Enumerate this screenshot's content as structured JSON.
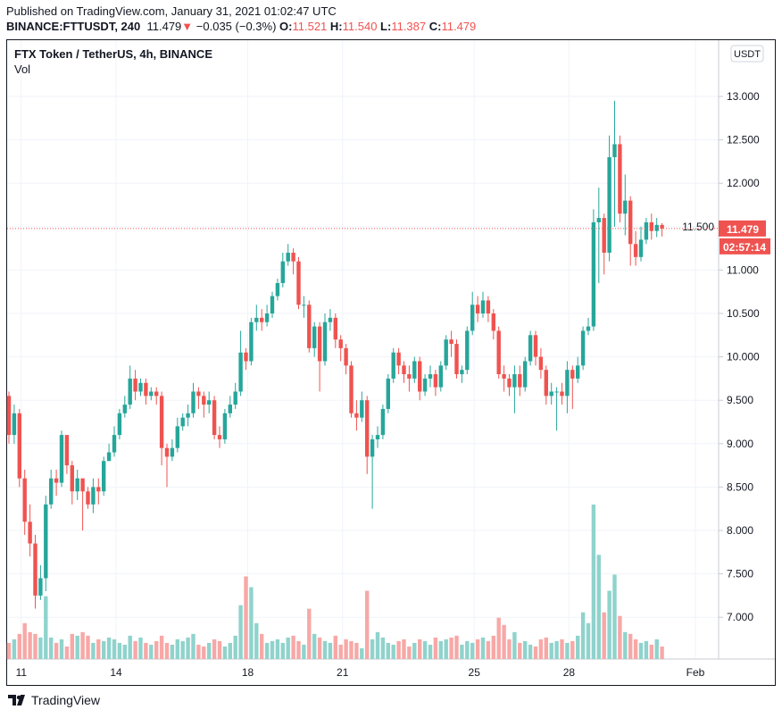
{
  "header": {
    "published": "Published on TradingView.com, January 31, 2021 01:02:47 UTC",
    "symbol": "BINANCE:FTTUSDT, 240",
    "last": "11.479",
    "change": "−0.035 (−0.3%)",
    "o_label": "O:",
    "o": "11.521",
    "h_label": "H:",
    "h": "11.540",
    "l_label": "L:",
    "l": "11.387",
    "c_label": "C:",
    "c": "11.479"
  },
  "chart_title": "FTX Token / TetherUS, 4h, BINANCE",
  "vol_label": "Vol",
  "currency_badge": "USDT",
  "price_label": "11.479",
  "countdown": "02:57:14",
  "footer_logo": "TradingView",
  "colors": {
    "up": "#26a69a",
    "down": "#ef5350",
    "up_vol": "#8fd3cc",
    "down_vol": "#f7a8a6"
  },
  "chart_data": {
    "type": "candlestick",
    "interval": "4h",
    "ylim": [
      6.6,
      13.5
    ],
    "y_ticks": [
      "13.000",
      "12.500",
      "12.000",
      "11.500",
      "11.000",
      "10.500",
      "10.000",
      "9.500",
      "9.000",
      "8.500",
      "8.000",
      "7.500",
      "7.000"
    ],
    "x_ticks": [
      {
        "label": "11",
        "index": 2
      },
      {
        "label": "14",
        "index": 20
      },
      {
        "label": "18",
        "index": 45
      },
      {
        "label": "21",
        "index": 63
      },
      {
        "label": "25",
        "index": 88
      },
      {
        "label": "28",
        "index": 106
      },
      {
        "label": "Feb",
        "index": 130
      }
    ],
    "first_open": 9.55,
    "close": [
      9.1,
      9.35,
      8.6,
      8.1,
      7.85,
      7.25,
      7.45,
      8.3,
      8.6,
      8.55,
      9.1,
      8.75,
      8.45,
      8.6,
      8.45,
      8.3,
      8.5,
      8.45,
      8.8,
      8.9,
      9.1,
      9.35,
      9.45,
      9.75,
      9.6,
      9.7,
      9.55,
      9.6,
      9.55,
      8.95,
      8.85,
      8.95,
      9.2,
      9.3,
      9.35,
      9.6,
      9.55,
      9.45,
      9.5,
      9.1,
      9.05,
      9.35,
      9.45,
      9.6,
      10.05,
      9.95,
      10.4,
      10.45,
      10.4,
      10.5,
      10.7,
      10.85,
      11.1,
      11.2,
      11.1,
      10.6,
      10.6,
      10.1,
      10.35,
      9.95,
      10.4,
      10.45,
      10.2,
      10.1,
      9.9,
      9.35,
      9.3,
      9.5,
      8.85,
      9.05,
      9.1,
      9.4,
      9.75,
      10.05,
      9.9,
      9.8,
      9.75,
      9.95,
      9.6,
      9.75,
      9.8,
      9.65,
      9.9,
      10.2,
      10.15,
      9.8,
      9.85,
      10.3,
      10.6,
      10.5,
      10.65,
      10.5,
      10.3,
      9.8,
      9.75,
      9.65,
      9.8,
      9.65,
      9.95,
      10.25,
      10.0,
      9.85,
      9.55,
      9.6,
      9.6,
      9.55,
      9.85,
      9.75,
      9.9,
      10.3,
      10.35,
      11.55,
      11.6,
      11.2,
      12.3,
      12.45,
      11.65,
      11.8,
      11.3,
      11.15,
      11.35,
      11.55,
      11.45,
      11.52,
      11.479
    ],
    "high": [
      9.6,
      9.45,
      9.4,
      8.7,
      8.3,
      7.95,
      7.6,
      8.4,
      8.7,
      8.7,
      9.15,
      9.1,
      8.8,
      8.7,
      8.6,
      8.5,
      8.6,
      8.6,
      8.85,
      9.0,
      9.2,
      9.4,
      9.55,
      9.9,
      9.85,
      9.75,
      9.75,
      9.65,
      9.65,
      9.6,
      9.0,
      9.05,
      9.3,
      9.35,
      9.45,
      9.7,
      9.65,
      9.6,
      9.6,
      9.55,
      9.2,
      9.4,
      9.55,
      9.7,
      10.3,
      10.1,
      10.45,
      10.6,
      10.55,
      10.6,
      10.75,
      10.9,
      11.2,
      11.3,
      11.25,
      11.15,
      10.7,
      10.65,
      10.4,
      10.4,
      10.5,
      10.55,
      10.5,
      10.25,
      10.15,
      9.95,
      9.5,
      9.6,
      9.55,
      9.1,
      9.2,
      9.45,
      9.8,
      10.1,
      10.1,
      9.95,
      9.9,
      10.0,
      10.0,
      9.8,
      9.9,
      9.85,
      9.95,
      10.25,
      10.3,
      10.2,
      9.9,
      10.35,
      10.75,
      10.7,
      10.75,
      10.7,
      10.55,
      10.35,
      9.9,
      9.8,
      9.9,
      9.9,
      10.0,
      10.3,
      10.3,
      10.1,
      9.9,
      9.7,
      9.65,
      9.7,
      9.95,
      9.9,
      10.0,
      10.35,
      10.45,
      11.7,
      11.95,
      11.65,
      12.55,
      12.95,
      12.55,
      12.1,
      11.85,
      11.45,
      11.5,
      11.6,
      11.65,
      11.6,
      11.54
    ],
    "low": [
      9.0,
      9.0,
      8.5,
      7.95,
      7.7,
      7.1,
      7.2,
      7.3,
      8.25,
      8.4,
      8.5,
      8.65,
      8.3,
      8.35,
      8.0,
      8.25,
      8.2,
      8.3,
      8.4,
      8.8,
      8.85,
      9.05,
      9.3,
      9.4,
      9.5,
      9.55,
      9.45,
      9.5,
      9.45,
      8.75,
      8.5,
      8.8,
      8.9,
      9.15,
      9.2,
      9.3,
      9.4,
      9.3,
      9.35,
      9.05,
      8.95,
      9.0,
      9.3,
      9.4,
      9.55,
      9.85,
      9.9,
      10.3,
      10.3,
      10.35,
      10.45,
      10.65,
      10.8,
      11.05,
      10.95,
      10.55,
      10.45,
      10.05,
      10.0,
      9.6,
      9.9,
      10.3,
      10.1,
      9.95,
      9.8,
      9.3,
      9.15,
      9.25,
      8.65,
      8.25,
      8.95,
      9.05,
      9.35,
      9.7,
      9.8,
      9.7,
      9.6,
      9.7,
      9.5,
      9.55,
      9.65,
      9.55,
      9.6,
      9.85,
      10.0,
      9.75,
      9.7,
      9.8,
      10.25,
      10.4,
      10.45,
      10.4,
      10.2,
      9.75,
      9.6,
      9.55,
      9.35,
      9.55,
      9.6,
      9.9,
      9.9,
      9.75,
      9.45,
      9.45,
      9.15,
      9.45,
      9.35,
      9.4,
      9.7,
      9.85,
      10.25,
      10.3,
      10.85,
      10.95,
      11.1,
      11.5,
      11.55,
      11.4,
      11.05,
      11.05,
      11.1,
      11.3,
      11.35,
      11.38,
      11.387
    ],
    "volume": [
      18,
      22,
      28,
      40,
      30,
      28,
      24,
      70,
      24,
      18,
      22,
      14,
      28,
      26,
      30,
      26,
      18,
      22,
      20,
      24,
      22,
      18,
      16,
      26,
      20,
      24,
      18,
      16,
      20,
      26,
      18,
      16,
      22,
      20,
      24,
      28,
      16,
      14,
      18,
      22,
      20,
      14,
      18,
      26,
      60,
      92,
      80,
      40,
      28,
      18,
      20,
      22,
      18,
      24,
      26,
      20,
      16,
      56,
      28,
      24,
      20,
      18,
      26,
      16,
      22,
      20,
      18,
      12,
      76,
      22,
      30,
      24,
      18,
      16,
      20,
      22,
      14,
      18,
      22,
      20,
      16,
      24,
      20,
      22,
      24,
      26,
      16,
      20,
      18,
      22,
      24,
      20,
      26,
      46,
      38,
      22,
      30,
      18,
      20,
      16,
      14,
      22,
      24,
      18,
      20,
      22,
      18,
      20,
      26,
      52,
      40,
      172,
      116,
      52,
      76,
      94,
      48,
      30,
      28,
      22,
      18,
      20,
      16,
      22,
      14
    ]
  }
}
